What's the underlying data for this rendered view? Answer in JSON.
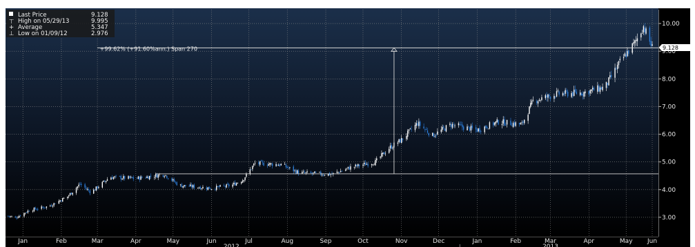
{
  "legend": {
    "items": [
      {
        "icon": "last-price-swatch",
        "label": "Last Price",
        "value": "9.128"
      },
      {
        "icon": "high-marker-icon",
        "label": "High on 05/29/13",
        "value": "9.995"
      },
      {
        "icon": "average-marker-icon",
        "label": "Average",
        "value": "5.347"
      },
      {
        "icon": "low-marker-icon",
        "label": "Low on 01/09/12",
        "value": "2.976"
      }
    ]
  },
  "annotation": {
    "text": "+99.62% (+91.60%ann.) Span 270",
    "start_value": 4.57,
    "end_value": 9.12,
    "start_date": "2012-11-09"
  },
  "last_price_badge": "9.128",
  "colors": {
    "background": "#000000",
    "gradient_top": "#1b2f4a",
    "gradient_bottom": "#000000",
    "up_candle": "#ffffff",
    "down_candle": "#2b7bd6",
    "grid": "#8a8a8a",
    "annotation_line": "#d8d8d8"
  },
  "chart_data": {
    "type": "candlestick",
    "x_start": "2012-01-01",
    "x_end": "2013-06-10",
    "ylim": [
      2.3,
      10.5
    ],
    "y_ticks": [
      "3.00",
      "4.00",
      "5.00",
      "6.00",
      "7.00",
      "8.00",
      "9.00",
      "10.00"
    ],
    "x_ticks": [
      {
        "label": "Jan",
        "date": "2012-01-15"
      },
      {
        "label": "Feb",
        "date": "2012-02-15"
      },
      {
        "label": "Mar",
        "date": "2012-03-15"
      },
      {
        "label": "Apr",
        "date": "2012-04-15"
      },
      {
        "label": "May",
        "date": "2012-05-15"
      },
      {
        "label": "Jun",
        "date": "2012-06-15"
      },
      {
        "label": "Jul",
        "date": "2012-07-15"
      },
      {
        "label": "Aug",
        "date": "2012-08-15"
      },
      {
        "label": "Sep",
        "date": "2012-09-15"
      },
      {
        "label": "Oct",
        "date": "2012-10-15"
      },
      {
        "label": "Nov",
        "date": "2012-11-15"
      },
      {
        "label": "Dec",
        "date": "2012-12-15"
      },
      {
        "label": "Jan",
        "date": "2013-01-15"
      },
      {
        "label": "Feb",
        "date": "2013-02-15"
      },
      {
        "label": "Mar",
        "date": "2013-03-15"
      },
      {
        "label": "Apr",
        "date": "2013-04-15"
      },
      {
        "label": "May",
        "date": "2013-05-15"
      },
      {
        "label": "Jun",
        "date": "2013-06-05"
      }
    ],
    "year_labels": [
      {
        "label": "2012",
        "date": "2012-07-01"
      },
      {
        "label": "2013",
        "date": "2013-03-15"
      }
    ],
    "year_divider_date": "2013-01-01",
    "grid": true,
    "legend_position": "top-left",
    "price_path": [
      {
        "date": "2012-01-03",
        "close": 3.05
      },
      {
        "date": "2012-01-09",
        "close": 2.98
      },
      {
        "date": "2012-01-20",
        "close": 3.25
      },
      {
        "date": "2012-02-05",
        "close": 3.4
      },
      {
        "date": "2012-02-20",
        "close": 3.75
      },
      {
        "date": "2012-03-01",
        "close": 4.2
      },
      {
        "date": "2012-03-10",
        "close": 3.9
      },
      {
        "date": "2012-03-25",
        "close": 4.45
      },
      {
        "date": "2012-04-15",
        "close": 4.4
      },
      {
        "date": "2012-05-08",
        "close": 4.55
      },
      {
        "date": "2012-05-20",
        "close": 4.15
      },
      {
        "date": "2012-06-15",
        "close": 4.05
      },
      {
        "date": "2012-07-01",
        "close": 4.15
      },
      {
        "date": "2012-07-10",
        "close": 4.35
      },
      {
        "date": "2012-07-20",
        "close": 4.95
      },
      {
        "date": "2012-08-10",
        "close": 4.9
      },
      {
        "date": "2012-08-25",
        "close": 4.6
      },
      {
        "date": "2012-09-20",
        "close": 4.55
      },
      {
        "date": "2012-10-05",
        "close": 4.8
      },
      {
        "date": "2012-10-25",
        "close": 5.0
      },
      {
        "date": "2012-11-05",
        "close": 5.5
      },
      {
        "date": "2012-11-15",
        "close": 5.8
      },
      {
        "date": "2012-11-28",
        "close": 6.4
      },
      {
        "date": "2012-12-10",
        "close": 5.95
      },
      {
        "date": "2012-12-25",
        "close": 6.35
      },
      {
        "date": "2013-01-15",
        "close": 6.15
      },
      {
        "date": "2013-02-01",
        "close": 6.45
      },
      {
        "date": "2013-02-20",
        "close": 6.35
      },
      {
        "date": "2013-03-01",
        "close": 7.2
      },
      {
        "date": "2013-03-20",
        "close": 7.45
      },
      {
        "date": "2013-04-10",
        "close": 7.5
      },
      {
        "date": "2013-04-28",
        "close": 7.7
      },
      {
        "date": "2013-05-10",
        "close": 8.6
      },
      {
        "date": "2013-05-22",
        "close": 9.3
      },
      {
        "date": "2013-05-29",
        "close": 9.9
      },
      {
        "date": "2013-06-05",
        "close": 9.13
      }
    ]
  }
}
